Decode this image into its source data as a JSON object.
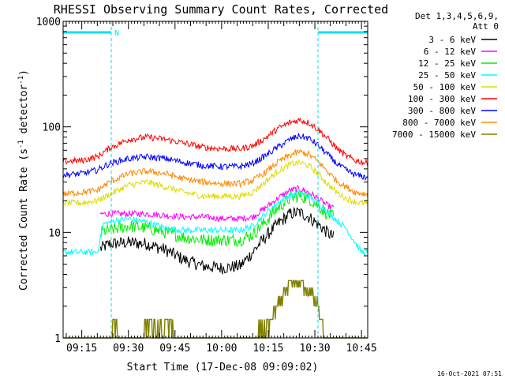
{
  "chart_data": {
    "type": "line",
    "title": "RHESSI Observing Summary Count Rates, Corrected",
    "xlabel": "Start Time (17-Dec-08 09:09:02)",
    "ylabel_main": "Corrected Count Rate (s",
    "ylabel_sup1": "-1",
    "ylabel_mid": " detector",
    "ylabel_sup2": "-1",
    "ylabel_end": ")",
    "y_scale": "log",
    "ylim": [
      1,
      1000
    ],
    "xlim_minutes": [
      0,
      98
    ],
    "x_tick_labels": [
      {
        "minute": 6,
        "label": "09:15"
      },
      {
        "minute": 21,
        "label": "09:30"
      },
      {
        "minute": 36,
        "label": "09:45"
      },
      {
        "minute": 51,
        "label": "10:00"
      },
      {
        "minute": 66,
        "label": "10:15"
      },
      {
        "minute": 81,
        "label": "10:30"
      },
      {
        "minute": 96,
        "label": "10:45"
      }
    ],
    "y_tick_labels": [
      {
        "value": 1,
        "label": "1"
      },
      {
        "value": 10,
        "label": "10"
      },
      {
        "value": 100,
        "label": "100"
      },
      {
        "value": 1000,
        "label": "1000"
      }
    ],
    "legend_header": [
      "Det 1,3,4,5,6,9,",
      "Att 0"
    ],
    "legend_placement": "right",
    "night_marks": [
      {
        "start": 0,
        "end": 15.5,
        "label": "N"
      },
      {
        "start": 82,
        "end": 98,
        "label": ""
      }
    ],
    "series": [
      {
        "name": "3 - 6 keV",
        "color": "#000000",
        "start": 12,
        "end": 87,
        "points": [
          [
            12,
            7
          ],
          [
            15,
            7.8
          ],
          [
            21,
            8
          ],
          [
            27,
            7.8
          ],
          [
            33,
            6.8
          ],
          [
            39,
            5.5
          ],
          [
            45,
            4.8
          ],
          [
            51,
            4.6
          ],
          [
            57,
            4.8
          ],
          [
            61,
            6.5
          ],
          [
            65,
            9
          ],
          [
            69,
            12
          ],
          [
            73,
            15
          ],
          [
            76,
            15.5
          ],
          [
            79,
            14
          ],
          [
            82,
            12
          ],
          [
            85,
            10
          ],
          [
            87,
            9
          ]
        ]
      },
      {
        "name": "6 - 12 keV",
        "color": "#ff00ff",
        "start": 12,
        "end": 87,
        "points": [
          [
            12,
            15
          ],
          [
            15,
            15
          ],
          [
            21,
            15
          ],
          [
            27,
            15
          ],
          [
            33,
            14.5
          ],
          [
            39,
            14
          ],
          [
            45,
            14
          ],
          [
            51,
            13.5
          ],
          [
            57,
            13.5
          ],
          [
            61,
            14
          ],
          [
            65,
            17
          ],
          [
            69,
            21
          ],
          [
            73,
            25
          ],
          [
            76,
            26
          ],
          [
            79,
            24
          ],
          [
            82,
            21
          ],
          [
            85,
            18
          ],
          [
            87,
            17
          ]
        ]
      },
      {
        "name": "12 - 25 keV",
        "color": "#00ee00",
        "start": 12,
        "end": 87,
        "points": [
          [
            12,
            10
          ],
          [
            15,
            10.5
          ],
          [
            21,
            11.5
          ],
          [
            27,
            11
          ],
          [
            33,
            10
          ],
          [
            39,
            9
          ],
          [
            45,
            8.5
          ],
          [
            51,
            8.5
          ],
          [
            57,
            8.5
          ],
          [
            61,
            9.5
          ],
          [
            65,
            12.5
          ],
          [
            69,
            17
          ],
          [
            73,
            21
          ],
          [
            76,
            22
          ],
          [
            79,
            21
          ],
          [
            82,
            18
          ],
          [
            85,
            15
          ],
          [
            87,
            14
          ]
        ]
      },
      {
        "name": "25 - 50 keV",
        "color": "#00ffff",
        "start": 0,
        "end": 98,
        "points": [
          [
            0,
            6.5
          ],
          [
            6,
            6.5
          ],
          [
            11,
            6.5
          ],
          [
            13,
            12
          ],
          [
            17,
            13
          ],
          [
            21,
            13.5
          ],
          [
            27,
            12.5
          ],
          [
            33,
            11
          ],
          [
            39,
            10.5
          ],
          [
            45,
            10.5
          ],
          [
            51,
            10.5
          ],
          [
            57,
            10.5
          ],
          [
            61,
            11.5
          ],
          [
            65,
            15
          ],
          [
            69,
            19
          ],
          [
            73,
            22.5
          ],
          [
            76,
            24
          ],
          [
            79,
            22
          ],
          [
            82,
            19
          ],
          [
            85,
            16
          ],
          [
            88,
            13
          ],
          [
            91,
            11
          ],
          [
            94,
            8
          ],
          [
            96,
            6.5
          ],
          [
            98,
            6.5
          ]
        ]
      },
      {
        "name": "50 - 100 keV",
        "color": "#dddd00",
        "start": 0,
        "end": 98,
        "points": [
          [
            0,
            19
          ],
          [
            6,
            19
          ],
          [
            11,
            20
          ],
          [
            15,
            23
          ],
          [
            21,
            28
          ],
          [
            27,
            30
          ],
          [
            33,
            27
          ],
          [
            39,
            24
          ],
          [
            45,
            22
          ],
          [
            51,
            22
          ],
          [
            57,
            22
          ],
          [
            61,
            24
          ],
          [
            65,
            30
          ],
          [
            69,
            38
          ],
          [
            73,
            44
          ],
          [
            76,
            46
          ],
          [
            79,
            43
          ],
          [
            82,
            36
          ],
          [
            85,
            29
          ],
          [
            88,
            24
          ],
          [
            91,
            21
          ],
          [
            94,
            19.5
          ],
          [
            98,
            18.5
          ]
        ]
      },
      {
        "name": "100 - 300 keV",
        "color": "#ff0000",
        "start": 0,
        "end": 98,
        "points": [
          [
            0,
            47
          ],
          [
            6,
            48
          ],
          [
            11,
            52
          ],
          [
            15,
            63
          ],
          [
            21,
            76
          ],
          [
            27,
            80
          ],
          [
            33,
            76
          ],
          [
            39,
            70
          ],
          [
            45,
            64
          ],
          [
            51,
            62
          ],
          [
            57,
            62
          ],
          [
            61,
            66
          ],
          [
            65,
            78
          ],
          [
            69,
            96
          ],
          [
            73,
            110
          ],
          [
            76,
            116
          ],
          [
            79,
            110
          ],
          [
            82,
            95
          ],
          [
            85,
            78
          ],
          [
            88,
            63
          ],
          [
            91,
            53
          ],
          [
            94,
            48
          ],
          [
            98,
            45
          ]
        ]
      },
      {
        "name": "300 - 800 keV",
        "color": "#0000ff",
        "start": 0,
        "end": 98,
        "points": [
          [
            0,
            35
          ],
          [
            6,
            36
          ],
          [
            11,
            39
          ],
          [
            15,
            45
          ],
          [
            21,
            50
          ],
          [
            27,
            52
          ],
          [
            33,
            50
          ],
          [
            39,
            46
          ],
          [
            45,
            43
          ],
          [
            51,
            42
          ],
          [
            57,
            42
          ],
          [
            61,
            45
          ],
          [
            65,
            53
          ],
          [
            69,
            64
          ],
          [
            73,
            76
          ],
          [
            76,
            82
          ],
          [
            79,
            78
          ],
          [
            82,
            67
          ],
          [
            85,
            55
          ],
          [
            88,
            45
          ],
          [
            91,
            39
          ],
          [
            94,
            35
          ],
          [
            98,
            33
          ]
        ]
      },
      {
        "name": "800 - 7000 keV",
        "color": "#ff8800",
        "start": 0,
        "end": 98,
        "points": [
          [
            0,
            23
          ],
          [
            6,
            24
          ],
          [
            11,
            25
          ],
          [
            15,
            30
          ],
          [
            21,
            36
          ],
          [
            27,
            38
          ],
          [
            33,
            36
          ],
          [
            39,
            32
          ],
          [
            45,
            30
          ],
          [
            51,
            29
          ],
          [
            57,
            29
          ],
          [
            61,
            31
          ],
          [
            65,
            37
          ],
          [
            69,
            46
          ],
          [
            73,
            54
          ],
          [
            76,
            58
          ],
          [
            79,
            55
          ],
          [
            82,
            47
          ],
          [
            85,
            38
          ],
          [
            88,
            31
          ],
          [
            91,
            27
          ],
          [
            94,
            24
          ],
          [
            98,
            23
          ]
        ]
      },
      {
        "name": "7000 - 15000 keV",
        "color": "#808000",
        "start": 0,
        "end": 98,
        "points": [
          [
            0,
            1
          ],
          [
            15.5,
            1
          ],
          [
            16,
            1.5
          ],
          [
            19,
            1
          ],
          [
            32,
            1.5
          ],
          [
            40,
            1
          ],
          [
            59,
            1
          ],
          [
            66,
            1.5
          ],
          [
            70,
            2.5
          ],
          [
            73,
            3.5
          ],
          [
            76,
            3.5
          ],
          [
            79,
            3
          ],
          [
            82,
            2.5
          ],
          [
            84,
            1
          ],
          [
            98,
            1
          ]
        ]
      }
    ],
    "timestamp": "16-Oct-2021 07:51"
  }
}
